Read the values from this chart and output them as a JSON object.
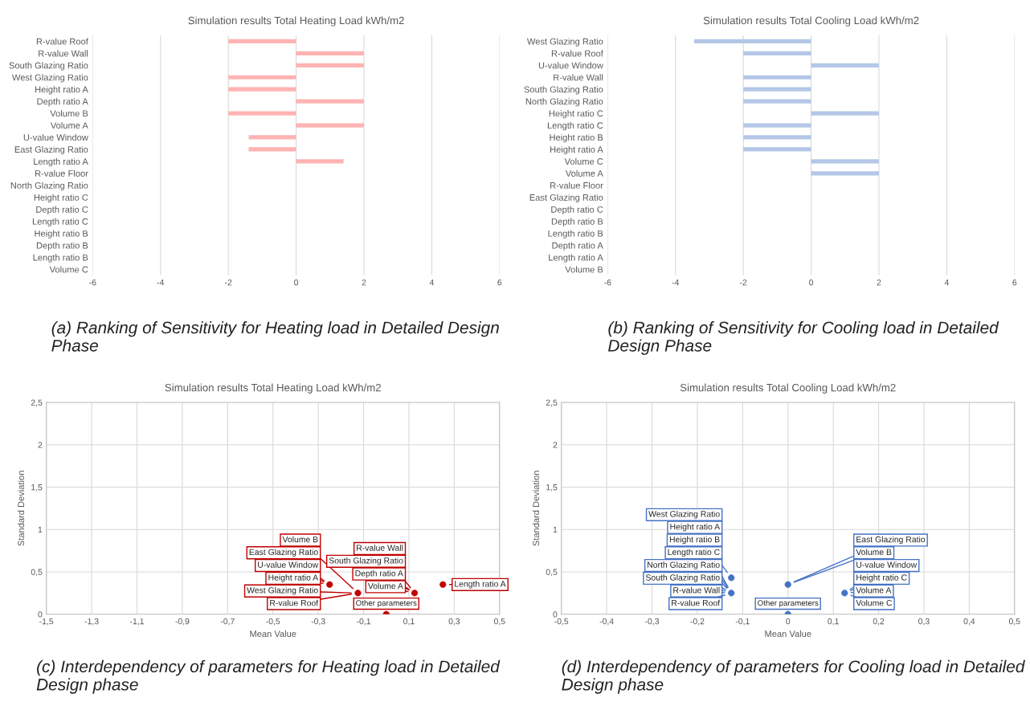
{
  "chart_data": [
    {
      "type": "bar",
      "orientation": "horizontal",
      "title": "Simulation results Total Heating Load kWh/m2",
      "categories": [
        "R-value Roof",
        "R-value Wall",
        "South Glazing Ratio",
        "West Glazing Ratio",
        "Height ratio A",
        "Depth ratio A",
        "Volume B",
        "Volume A",
        "U-value Window",
        "East Glazing Ratio",
        "Length ratio A",
        "R-value Floor",
        "North Glazing Ratio",
        "Height ratio C",
        "Depth ratio C",
        "Length ratio C",
        "Height ratio B",
        "Depth ratio B",
        "Length ratio B",
        "Volume C"
      ],
      "values": [
        -2,
        2,
        2,
        -2,
        -2,
        2,
        -2,
        2,
        -1.4,
        -1.4,
        1.4,
        0,
        0,
        0,
        0,
        0,
        0,
        0,
        0,
        0
      ],
      "color": "#ffb3b3",
      "xlim": [
        -6,
        6
      ],
      "xticks": [
        -6,
        -4,
        -2,
        0,
        2,
        4,
        6
      ],
      "grid": "x",
      "annotations": [
        "(a) Ranking of Sensitivity for Heating load in Detailed Design Phase"
      ]
    },
    {
      "type": "bar",
      "orientation": "horizontal",
      "title": "Simulation results Total Cooling Load kWh/m2",
      "categories": [
        "West Glazing Ratio",
        "R-value Roof",
        "U-value Window",
        "R-value Wall",
        "South Glazing Ratio",
        "North Glazing Ratio",
        "Height ratio C",
        "Length ratio C",
        "Height ratio B",
        "Height ratio A",
        "Volume C",
        "Volume A",
        "R-value Floor",
        "East Glazing Ratio",
        "Depth ratio C",
        "Depth ratio B",
        "Length ratio B",
        "Depth ratio A",
        "Length ratio A",
        "Volume B"
      ],
      "values": [
        -3.45,
        -2,
        2,
        -2,
        -2,
        -2,
        2,
        -2,
        -2,
        -2,
        2,
        2,
        0,
        0,
        0,
        0,
        0,
        0,
        0,
        0
      ],
      "color": "#b4c7e7",
      "xlim": [
        -6,
        6
      ],
      "xticks": [
        -6,
        -4,
        -2,
        0,
        2,
        4,
        6
      ],
      "grid": "x",
      "annotations": [
        "(b) Ranking of Sensitivity for Cooling load in Detailed Design Phase"
      ]
    },
    {
      "type": "scatter",
      "title": "Simulation results Total Heating Load kWh/m2",
      "xlabel": "Mean Value",
      "ylabel": "Standard Deviation",
      "x": [
        -0.25,
        -0.125,
        0,
        0.125,
        0.25
      ],
      "values": [
        0.35,
        0.25,
        0,
        0.25,
        0.35
      ],
      "color": "#c00000",
      "marker": "circle",
      "xlim": [
        -1.5,
        0.5
      ],
      "xticks": [
        {
          "value": -1.5,
          "label": "-1,5"
        },
        {
          "value": -1.3,
          "label": "-1,3"
        },
        {
          "value": -1.1,
          "label": "-1,1"
        },
        {
          "value": -0.9,
          "label": "-0,9"
        },
        {
          "value": -0.7,
          "label": "-0,7"
        },
        {
          "value": -0.5,
          "label": "-0,5"
        },
        {
          "value": -0.3,
          "label": "-0,3"
        },
        {
          "value": -0.1,
          "label": "-0,1"
        },
        {
          "value": 0.1,
          "label": "0,1"
        },
        {
          "value": 0.3,
          "label": "0,3"
        },
        {
          "value": 0.5,
          "label": "0,5"
        }
      ],
      "ylim": [
        0,
        2.5
      ],
      "yticks": [
        0,
        {
          "value": 0.5,
          "label": "0,5"
        },
        1,
        {
          "value": 1.5,
          "label": "1,5"
        },
        2,
        {
          "value": 2.5,
          "label": "2,5"
        }
      ],
      "grid": true,
      "annotations": [
        {
          "text": "Volume B",
          "x": -0.125,
          "y": 0.25
        },
        {
          "text": "East Glazing Ratio",
          "x": -0.25,
          "y": 0.35
        },
        {
          "text": "U-value Window",
          "x": -0.25,
          "y": 0.35
        },
        {
          "text": "Height ratio A",
          "x": -0.25,
          "y": 0.35
        },
        {
          "text": "West Glazing Ratio",
          "x": -0.125,
          "y": 0.25
        },
        {
          "text": "R-value Roof",
          "x": -0.125,
          "y": 0.25
        },
        {
          "text": "R-value Wall",
          "x": 0.125,
          "y": 0.25
        },
        {
          "text": "South Glazing Ratio",
          "x": 0.125,
          "y": 0.25
        },
        {
          "text": "Depth ratio A",
          "x": 0.125,
          "y": 0.25
        },
        {
          "text": "Length ratio A",
          "x": 0.25,
          "y": 0.35
        },
        {
          "text": "Volume A",
          "x": 0.125,
          "y": 0.25
        },
        {
          "text": "Other parameters",
          "x": 0,
          "y": 0
        },
        "(c) Interdependency of parameters for Heating load in Detailed Design phase"
      ]
    },
    {
      "type": "scatter",
      "title": "Simulation results Total Cooling Load kWh/m2",
      "xlabel": "Mean Value",
      "ylabel": "Standard Deviation",
      "x": [
        -0.125,
        -0.125,
        0,
        0,
        0.125
      ],
      "values": [
        0.25,
        0.43,
        0,
        0.35,
        0.25
      ],
      "color": "#4472c4",
      "marker": "circle",
      "xlim": [
        -0.5,
        0.5
      ],
      "xticks": [
        {
          "value": -0.5,
          "label": "-0,5"
        },
        {
          "value": -0.4,
          "label": "-0,4"
        },
        {
          "value": -0.3,
          "label": "-0,3"
        },
        {
          "value": -0.2,
          "label": "-0,2"
        },
        {
          "value": -0.1,
          "label": "-0,1"
        },
        0,
        {
          "value": 0.1,
          "label": "0,1"
        },
        {
          "value": 0.2,
          "label": "0,2"
        },
        {
          "value": 0.3,
          "label": "0,3"
        },
        {
          "value": 0.4,
          "label": "0,4"
        },
        {
          "value": 0.5,
          "label": "0,5"
        }
      ],
      "ylim": [
        0,
        2.5
      ],
      "yticks": [
        0,
        {
          "value": 0.5,
          "label": "0,5"
        },
        1,
        {
          "value": 1.5,
          "label": "1,5"
        },
        2,
        {
          "value": 2.5,
          "label": "2,5"
        }
      ],
      "grid": true,
      "annotations": [
        {
          "text": "West Glazing Ratio",
          "x": -0.125,
          "y": 0.43
        },
        {
          "text": "Height ratio A",
          "x": -0.125,
          "y": 0.25
        },
        {
          "text": "Height ratio B",
          "x": -0.125,
          "y": 0.25
        },
        {
          "text": "Length ratio C",
          "x": -0.125,
          "y": 0.25
        },
        {
          "text": "North Glazing Ratio",
          "x": -0.125,
          "y": 0.25
        },
        {
          "text": "South Glazing Ratio",
          "x": -0.125,
          "y": 0.25
        },
        {
          "text": "R-value Wall",
          "x": -0.125,
          "y": 0.25
        },
        {
          "text": "R-value Roof",
          "x": -0.125,
          "y": 0.25
        },
        {
          "text": "East Glazing Ratio",
          "x": 0,
          "y": 0.35
        },
        {
          "text": "Volume B",
          "x": 0,
          "y": 0.35
        },
        {
          "text": "U-value Window",
          "x": 0.125,
          "y": 0.25
        },
        {
          "text": "Height ratio C",
          "x": 0.125,
          "y": 0.25
        },
        {
          "text": "Volume A",
          "x": 0.125,
          "y": 0.25
        },
        {
          "text": "Volume C",
          "x": 0.125,
          "y": 0.25
        },
        {
          "text": "Other parameters",
          "x": 0,
          "y": 0
        },
        "(d) Interdependency of parameters for Cooling load in Detailed Design phase"
      ]
    }
  ]
}
